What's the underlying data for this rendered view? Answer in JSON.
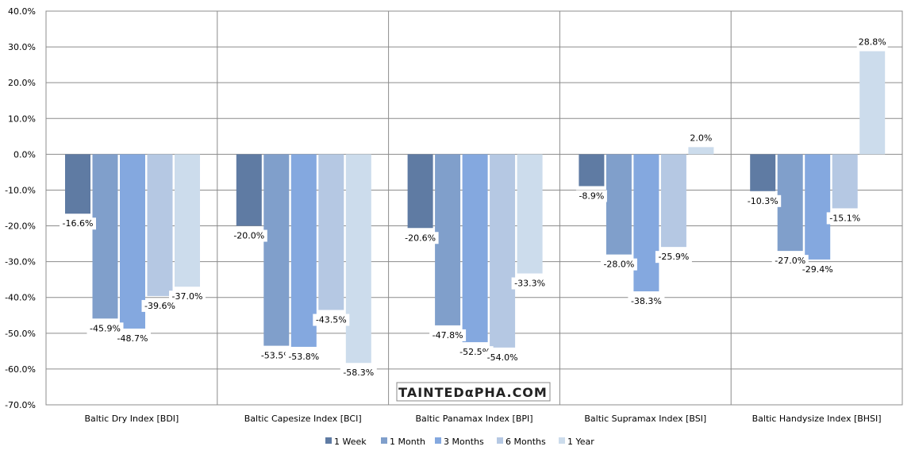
{
  "chart_data": {
    "type": "bar",
    "title": "",
    "xlabel": "",
    "ylabel": "",
    "ylim": [
      -70,
      40
    ],
    "yticks": [
      "40.0%",
      "30.0%",
      "20.0%",
      "10.0%",
      "0.0%",
      "-10.0%",
      "-20.0%",
      "-30.0%",
      "-40.0%",
      "-50.0%",
      "-60.0%",
      "-70.0%"
    ],
    "grid": true,
    "legend_position": "bottom",
    "categories": [
      "Baltic Dry Index [BDI]",
      "Baltic Capesize Index [BCI]",
      "Baltic Panamax Index [BPI]",
      "Baltic Supramax Index [BSI]",
      "Baltic Handysize Index [BHSI]"
    ],
    "series": [
      {
        "name": "1 Week",
        "color": "#5f7ba3",
        "values": [
          -16.6,
          -20.0,
          -20.6,
          -8.9,
          -10.3
        ]
      },
      {
        "name": "1 Month",
        "color": "#809fcb",
        "values": [
          -45.9,
          -53.5,
          -47.8,
          -28.0,
          -27.0
        ]
      },
      {
        "name": "3 Months",
        "color": "#84a8df",
        "values": [
          -48.7,
          -53.8,
          -52.5,
          -38.3,
          -29.4
        ]
      },
      {
        "name": "6 Months",
        "color": "#b5c8e3",
        "values": [
          -39.6,
          -43.5,
          -54.0,
          -25.9,
          -15.1
        ]
      },
      {
        "name": "1 Year",
        "color": "#ccdcec",
        "values": [
          -37.0,
          -58.3,
          -33.3,
          2.0,
          28.8
        ]
      }
    ],
    "logo_text": "TAINTEDαPHA.COM"
  }
}
